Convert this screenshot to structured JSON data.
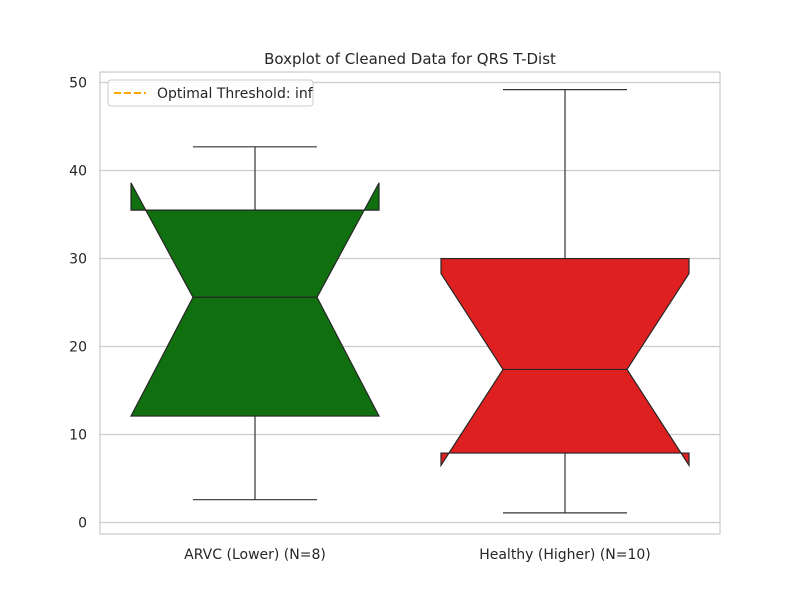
{
  "chart_data": {
    "type": "box",
    "title": "Boxplot of Cleaned Data for QRS T-Dist",
    "xlabel": "",
    "ylabel": "",
    "ylim": [
      -1.3,
      51.2
    ],
    "yticks": [
      0,
      10,
      20,
      30,
      40,
      50
    ],
    "grid": true,
    "notched": true,
    "categories": [
      "ARVC (Lower) (N=8)",
      "Healthy (Higher) (N=10)"
    ],
    "boxes": [
      {
        "label": "ARVC (Lower) (N=8)",
        "color": "#107010",
        "whisker_low": 2.6,
        "q1": 12.1,
        "median": 25.6,
        "q3": 35.5,
        "whisker_high": 42.7,
        "notch_low": 12.1,
        "notch_high": 38.6
      },
      {
        "label": "Healthy (Higher) (N=10)",
        "color": "#df2020",
        "whisker_low": 1.1,
        "q1": 7.9,
        "median": 17.4,
        "q3": 30.0,
        "whisker_high": 49.2,
        "notch_low": 6.5,
        "notch_high": 28.3
      }
    ],
    "legend": {
      "position": "top-left",
      "entries": [
        {
          "label": "Optimal Threshold: inf",
          "color": "#ffa500",
          "style": "dashed"
        }
      ]
    }
  }
}
